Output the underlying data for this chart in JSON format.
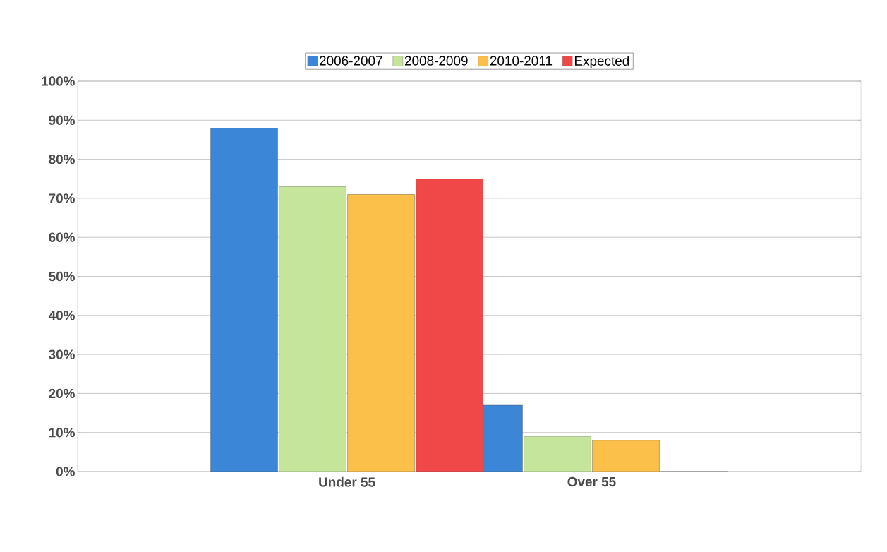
{
  "chart_data": {
    "type": "bar",
    "categories": [
      "Under 55",
      "Over 55"
    ],
    "series": [
      {
        "name": "2006-2007",
        "color": "#3b86d6",
        "values": [
          88,
          17
        ]
      },
      {
        "name": "2008-2009",
        "color": "#c5e69a",
        "values": [
          73,
          9
        ]
      },
      {
        "name": "2010-2011",
        "color": "#fbc04a",
        "values": [
          71,
          8
        ]
      },
      {
        "name": "Expected",
        "color": "#f04848",
        "values": [
          75,
          0
        ]
      }
    ],
    "ylim": [
      0,
      100
    ],
    "yticks": [
      {
        "value": 0,
        "label": "0%"
      },
      {
        "value": 10,
        "label": "10%"
      },
      {
        "value": 20,
        "label": "20%"
      },
      {
        "value": 30,
        "label": "30%"
      },
      {
        "value": 40,
        "label": "40%"
      },
      {
        "value": 50,
        "label": "50%"
      },
      {
        "value": 60,
        "label": "60%"
      },
      {
        "value": 70,
        "label": "70%"
      },
      {
        "value": 80,
        "label": "80%"
      },
      {
        "value": 90,
        "label": "90%"
      },
      {
        "value": 100,
        "label": "100%"
      }
    ],
    "grid": "y",
    "legend": "top"
  }
}
